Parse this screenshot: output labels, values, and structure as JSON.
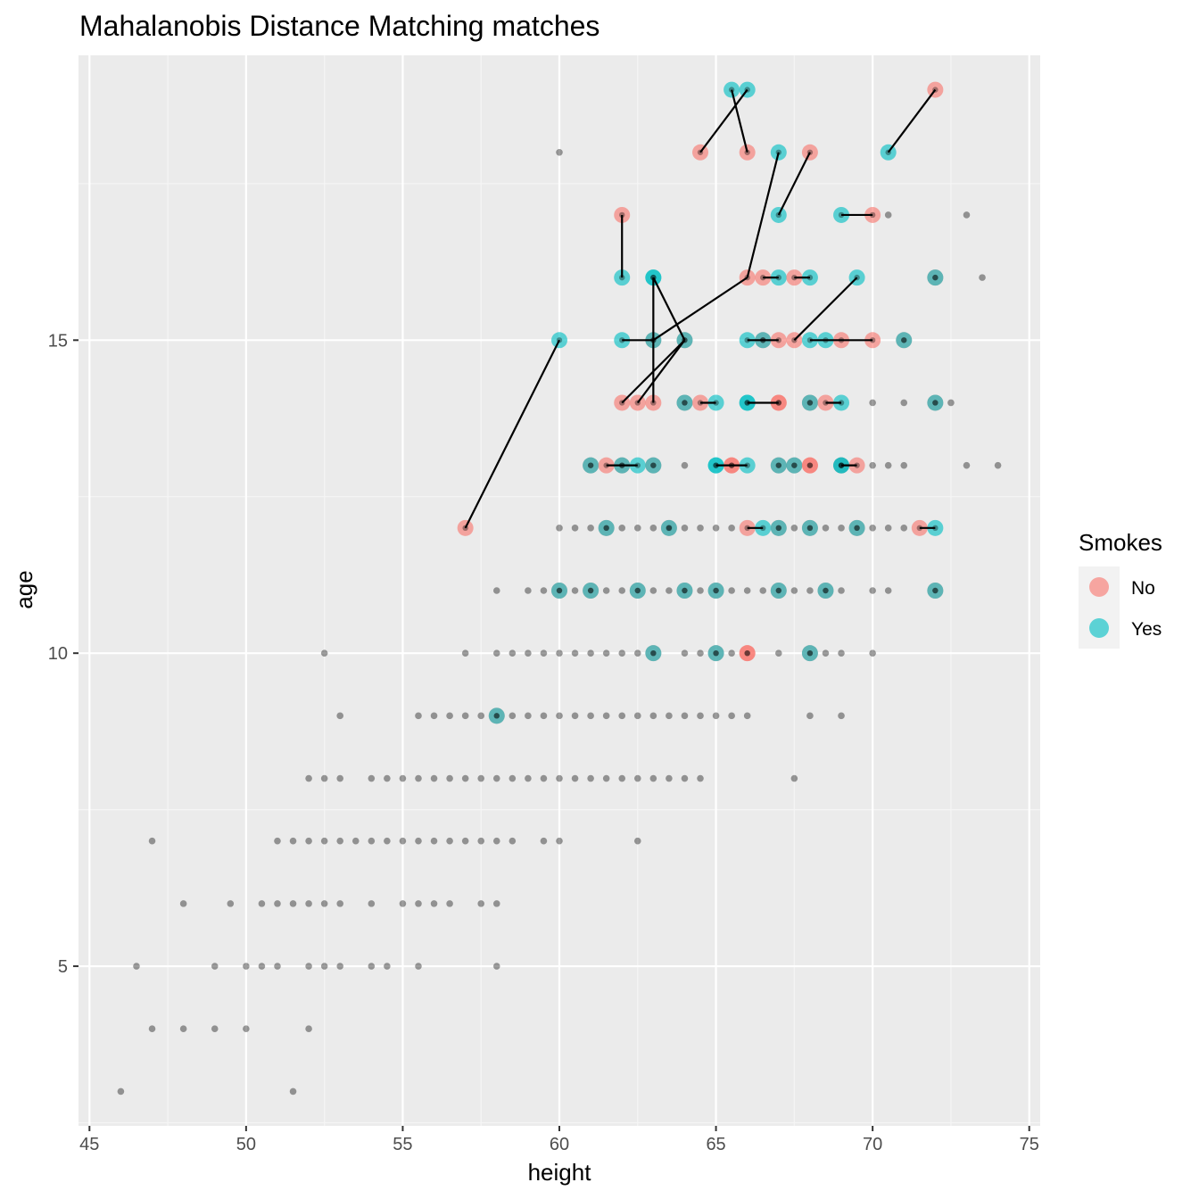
{
  "chart_data": {
    "type": "scatter",
    "title": "Mahalanobis Distance Matching matches",
    "xlabel": "height",
    "ylabel": "age",
    "xlim": [
      44.65,
      75.35
    ],
    "ylim": [
      2.45,
      19.55
    ],
    "x_ticks": [
      45,
      50,
      55,
      60,
      65,
      70,
      75
    ],
    "y_ticks": [
      5,
      10,
      15
    ],
    "grid": true,
    "legend": {
      "title": "Smokes",
      "position": "right",
      "entries": [
        {
          "label": "No",
          "color": "#F8766D"
        },
        {
          "label": "Yes",
          "color": "#00BFC4"
        }
      ]
    },
    "colors": {
      "panel": "#EBEBEB",
      "grid_major": "#FFFFFF",
      "grid_minor": "#F5F5F5",
      "unmatched": "#000000",
      "No": "#F8766D",
      "Yes": "#00BFC4",
      "match_line": "#000000"
    },
    "unmatched_points": [
      [
        46,
        3
      ],
      [
        51.5,
        3
      ],
      [
        47,
        4
      ],
      [
        48,
        4
      ],
      [
        49,
        4
      ],
      [
        50,
        4
      ],
      [
        52,
        4
      ],
      [
        46.5,
        5
      ],
      [
        49,
        5
      ],
      [
        50,
        5
      ],
      [
        50.5,
        5
      ],
      [
        51,
        5
      ],
      [
        52,
        5
      ],
      [
        52.5,
        5
      ],
      [
        53,
        5
      ],
      [
        54,
        5
      ],
      [
        54.5,
        5
      ],
      [
        55.5,
        5
      ],
      [
        58,
        5
      ],
      [
        48,
        6
      ],
      [
        49.5,
        6
      ],
      [
        50.5,
        6
      ],
      [
        51,
        6
      ],
      [
        51.5,
        6
      ],
      [
        52,
        6
      ],
      [
        52.5,
        6
      ],
      [
        53,
        6
      ],
      [
        54,
        6
      ],
      [
        55,
        6
      ],
      [
        55.5,
        6
      ],
      [
        56,
        6
      ],
      [
        56.5,
        6
      ],
      [
        57.5,
        6
      ],
      [
        58,
        6
      ],
      [
        47,
        7
      ],
      [
        51,
        7
      ],
      [
        51.5,
        7
      ],
      [
        52,
        7
      ],
      [
        52.5,
        7
      ],
      [
        53,
        7
      ],
      [
        53.5,
        7
      ],
      [
        54,
        7
      ],
      [
        54.5,
        7
      ],
      [
        55,
        7
      ],
      [
        55.5,
        7
      ],
      [
        56,
        7
      ],
      [
        56.5,
        7
      ],
      [
        57,
        7
      ],
      [
        57.5,
        7
      ],
      [
        58,
        7
      ],
      [
        58.5,
        7
      ],
      [
        59.5,
        7
      ],
      [
        60,
        7
      ],
      [
        62.5,
        7
      ],
      [
        52,
        8
      ],
      [
        52.5,
        8
      ],
      [
        53,
        8
      ],
      [
        54,
        8
      ],
      [
        54.5,
        8
      ],
      [
        55,
        8
      ],
      [
        55.5,
        8
      ],
      [
        56,
        8
      ],
      [
        56.5,
        8
      ],
      [
        57,
        8
      ],
      [
        57.5,
        8
      ],
      [
        58,
        8
      ],
      [
        58.5,
        8
      ],
      [
        59,
        8
      ],
      [
        59.5,
        8
      ],
      [
        60,
        8
      ],
      [
        60.5,
        8
      ],
      [
        61,
        8
      ],
      [
        61.5,
        8
      ],
      [
        62,
        8
      ],
      [
        62.5,
        8
      ],
      [
        63,
        8
      ],
      [
        63.5,
        8
      ],
      [
        64,
        8
      ],
      [
        64.5,
        8
      ],
      [
        67.5,
        8
      ],
      [
        53,
        9
      ],
      [
        55.5,
        9
      ],
      [
        56,
        9
      ],
      [
        56.5,
        9
      ],
      [
        57,
        9
      ],
      [
        57.5,
        9
      ],
      [
        58.5,
        9
      ],
      [
        59,
        9
      ],
      [
        59.5,
        9
      ],
      [
        60,
        9
      ],
      [
        60.5,
        9
      ],
      [
        61,
        9
      ],
      [
        61.5,
        9
      ],
      [
        62,
        9
      ],
      [
        62.5,
        9
      ],
      [
        63,
        9
      ],
      [
        63.5,
        9
      ],
      [
        64,
        9
      ],
      [
        64.5,
        9
      ],
      [
        65,
        9
      ],
      [
        65.5,
        9
      ],
      [
        66,
        9
      ],
      [
        68,
        9
      ],
      [
        69,
        9
      ],
      [
        52.5,
        10
      ],
      [
        57,
        10
      ],
      [
        58,
        10
      ],
      [
        58.5,
        10
      ],
      [
        59,
        10
      ],
      [
        59.5,
        10
      ],
      [
        60,
        10
      ],
      [
        60.5,
        10
      ],
      [
        61,
        10
      ],
      [
        61.5,
        10
      ],
      [
        62,
        10
      ],
      [
        62.5,
        10
      ],
      [
        64,
        10
      ],
      [
        64.5,
        10
      ],
      [
        65.5,
        10
      ],
      [
        67,
        10
      ],
      [
        68.5,
        10
      ],
      [
        69,
        10
      ],
      [
        70,
        10
      ],
      [
        58,
        11
      ],
      [
        59,
        11
      ],
      [
        59.5,
        11
      ],
      [
        60.5,
        11
      ],
      [
        61.5,
        11
      ],
      [
        62,
        11
      ],
      [
        63,
        11
      ],
      [
        63.5,
        11
      ],
      [
        64.5,
        11
      ],
      [
        65.5,
        11
      ],
      [
        66,
        11
      ],
      [
        66.5,
        11
      ],
      [
        67.5,
        11
      ],
      [
        68,
        11
      ],
      [
        69,
        11
      ],
      [
        70,
        11
      ],
      [
        70.5,
        11
      ],
      [
        60,
        12
      ],
      [
        60.5,
        12
      ],
      [
        61,
        12
      ],
      [
        62,
        12
      ],
      [
        62.5,
        12
      ],
      [
        63,
        12
      ],
      [
        63.5,
        12
      ],
      [
        64,
        12
      ],
      [
        64.5,
        12
      ],
      [
        65,
        12
      ],
      [
        65.5,
        12
      ],
      [
        67.5,
        12
      ],
      [
        68.5,
        12
      ],
      [
        69,
        12
      ],
      [
        70,
        12
      ],
      [
        70.5,
        12
      ],
      [
        71,
        12
      ],
      [
        64,
        13
      ],
      [
        70,
        13
      ],
      [
        70.5,
        13
      ],
      [
        71,
        13
      ],
      [
        73,
        13
      ],
      [
        74,
        13
      ],
      [
        70,
        14
      ],
      [
        71,
        14
      ],
      [
        72.5,
        14
      ],
      [
        73.5,
        16
      ],
      [
        70.5,
        17
      ],
      [
        73,
        17
      ],
      [
        60,
        18
      ]
    ],
    "matched_points": [
      {
        "x": 57,
        "y": 12,
        "group": "No"
      },
      {
        "x": 60,
        "y": 15,
        "group": "Yes"
      },
      {
        "x": 64.5,
        "y": 18,
        "group": "No"
      },
      {
        "x": 66,
        "y": 18,
        "group": "No"
      },
      {
        "x": 65.5,
        "y": 19,
        "group": "Yes"
      },
      {
        "x": 66,
        "y": 19,
        "group": "Yes"
      },
      {
        "x": 67,
        "y": 18,
        "group": "Yes"
      },
      {
        "x": 68,
        "y": 18,
        "group": "No"
      },
      {
        "x": 70.5,
        "y": 18,
        "group": "Yes"
      },
      {
        "x": 72,
        "y": 19,
        "group": "No"
      },
      {
        "x": 62,
        "y": 17,
        "group": "No"
      },
      {
        "x": 67,
        "y": 17,
        "group": "Yes"
      },
      {
        "x": 69,
        "y": 17,
        "group": "Yes"
      },
      {
        "x": 70,
        "y": 17,
        "group": "No"
      },
      {
        "x": 62,
        "y": 16,
        "group": "Yes"
      },
      {
        "x": 63,
        "y": 16,
        "group": "Yes"
      },
      {
        "x": 63,
        "y": 16,
        "group": "Yes"
      },
      {
        "x": 66,
        "y": 16,
        "group": "No"
      },
      {
        "x": 66.5,
        "y": 16,
        "group": "No"
      },
      {
        "x": 67,
        "y": 16,
        "group": "Yes"
      },
      {
        "x": 67.5,
        "y": 16,
        "group": "No"
      },
      {
        "x": 68,
        "y": 16,
        "group": "Yes"
      },
      {
        "x": 69.5,
        "y": 16,
        "group": "Yes"
      },
      {
        "x": 72,
        "y": 16,
        "group": "No"
      },
      {
        "x": 72,
        "y": 16,
        "group": "Yes"
      },
      {
        "x": 62,
        "y": 15,
        "group": "Yes"
      },
      {
        "x": 63,
        "y": 15,
        "group": "No"
      },
      {
        "x": 63,
        "y": 15,
        "group": "Yes"
      },
      {
        "x": 64,
        "y": 15,
        "group": "No"
      },
      {
        "x": 64,
        "y": 15,
        "group": "Yes"
      },
      {
        "x": 66,
        "y": 15,
        "group": "Yes"
      },
      {
        "x": 66.5,
        "y": 15,
        "group": "No"
      },
      {
        "x": 66.5,
        "y": 15,
        "group": "Yes"
      },
      {
        "x": 67,
        "y": 15,
        "group": "No"
      },
      {
        "x": 67.5,
        "y": 15,
        "group": "No"
      },
      {
        "x": 68,
        "y": 15,
        "group": "Yes"
      },
      {
        "x": 68.5,
        "y": 15,
        "group": "Yes"
      },
      {
        "x": 69,
        "y": 15,
        "group": "No"
      },
      {
        "x": 70,
        "y": 15,
        "group": "No"
      },
      {
        "x": 71,
        "y": 15,
        "group": "No"
      },
      {
        "x": 71,
        "y": 15,
        "group": "Yes"
      },
      {
        "x": 62,
        "y": 14,
        "group": "No"
      },
      {
        "x": 62.5,
        "y": 14,
        "group": "No"
      },
      {
        "x": 63,
        "y": 14,
        "group": "No"
      },
      {
        "x": 64,
        "y": 14,
        "group": "No"
      },
      {
        "x": 64,
        "y": 14,
        "group": "Yes"
      },
      {
        "x": 64.5,
        "y": 14,
        "group": "No"
      },
      {
        "x": 65,
        "y": 14,
        "group": "Yes"
      },
      {
        "x": 66,
        "y": 14,
        "group": "Yes"
      },
      {
        "x": 66,
        "y": 14,
        "group": "Yes"
      },
      {
        "x": 67,
        "y": 14,
        "group": "No"
      },
      {
        "x": 67,
        "y": 14,
        "group": "No"
      },
      {
        "x": 68,
        "y": 14,
        "group": "No"
      },
      {
        "x": 68,
        "y": 14,
        "group": "Yes"
      },
      {
        "x": 68.5,
        "y": 14,
        "group": "No"
      },
      {
        "x": 69,
        "y": 14,
        "group": "Yes"
      },
      {
        "x": 72,
        "y": 14,
        "group": "No"
      },
      {
        "x": 72,
        "y": 14,
        "group": "Yes"
      },
      {
        "x": 61,
        "y": 13,
        "group": "No"
      },
      {
        "x": 61,
        "y": 13,
        "group": "Yes"
      },
      {
        "x": 61.5,
        "y": 13,
        "group": "No"
      },
      {
        "x": 62,
        "y": 13,
        "group": "No"
      },
      {
        "x": 62,
        "y": 13,
        "group": "Yes"
      },
      {
        "x": 62.5,
        "y": 13,
        "group": "Yes"
      },
      {
        "x": 63,
        "y": 13,
        "group": "No"
      },
      {
        "x": 63,
        "y": 13,
        "group": "Yes"
      },
      {
        "x": 65,
        "y": 13,
        "group": "Yes"
      },
      {
        "x": 65,
        "y": 13,
        "group": "Yes"
      },
      {
        "x": 65.5,
        "y": 13,
        "group": "No"
      },
      {
        "x": 65.5,
        "y": 13,
        "group": "No"
      },
      {
        "x": 66,
        "y": 13,
        "group": "Yes"
      },
      {
        "x": 67,
        "y": 13,
        "group": "No"
      },
      {
        "x": 67,
        "y": 13,
        "group": "Yes"
      },
      {
        "x": 67.5,
        "y": 13,
        "group": "No"
      },
      {
        "x": 67.5,
        "y": 13,
        "group": "Yes"
      },
      {
        "x": 68,
        "y": 13,
        "group": "No"
      },
      {
        "x": 68,
        "y": 13,
        "group": "No"
      },
      {
        "x": 69,
        "y": 13,
        "group": "No"
      },
      {
        "x": 69,
        "y": 13,
        "group": "Yes"
      },
      {
        "x": 69,
        "y": 13,
        "group": "Yes"
      },
      {
        "x": 69.5,
        "y": 13,
        "group": "No"
      },
      {
        "x": 61.5,
        "y": 12,
        "group": "No"
      },
      {
        "x": 61.5,
        "y": 12,
        "group": "Yes"
      },
      {
        "x": 63.5,
        "y": 12,
        "group": "No"
      },
      {
        "x": 63.5,
        "y": 12,
        "group": "Yes"
      },
      {
        "x": 66,
        "y": 12,
        "group": "No"
      },
      {
        "x": 66.5,
        "y": 12,
        "group": "Yes"
      },
      {
        "x": 67,
        "y": 12,
        "group": "No"
      },
      {
        "x": 67,
        "y": 12,
        "group": "Yes"
      },
      {
        "x": 68,
        "y": 12,
        "group": "No"
      },
      {
        "x": 68,
        "y": 12,
        "group": "Yes"
      },
      {
        "x": 69.5,
        "y": 12,
        "group": "No"
      },
      {
        "x": 69.5,
        "y": 12,
        "group": "Yes"
      },
      {
        "x": 71.5,
        "y": 12,
        "group": "No"
      },
      {
        "x": 72,
        "y": 12,
        "group": "Yes"
      },
      {
        "x": 60,
        "y": 11,
        "group": "No"
      },
      {
        "x": 60,
        "y": 11,
        "group": "Yes"
      },
      {
        "x": 61,
        "y": 11,
        "group": "No"
      },
      {
        "x": 61,
        "y": 11,
        "group": "Yes"
      },
      {
        "x": 62.5,
        "y": 11,
        "group": "No"
      },
      {
        "x": 62.5,
        "y": 11,
        "group": "Yes"
      },
      {
        "x": 64,
        "y": 11,
        "group": "No"
      },
      {
        "x": 64,
        "y": 11,
        "group": "Yes"
      },
      {
        "x": 65,
        "y": 11,
        "group": "No"
      },
      {
        "x": 65,
        "y": 11,
        "group": "Yes"
      },
      {
        "x": 67,
        "y": 11,
        "group": "No"
      },
      {
        "x": 67,
        "y": 11,
        "group": "Yes"
      },
      {
        "x": 68.5,
        "y": 11,
        "group": "No"
      },
      {
        "x": 68.5,
        "y": 11,
        "group": "Yes"
      },
      {
        "x": 72,
        "y": 11,
        "group": "No"
      },
      {
        "x": 72,
        "y": 11,
        "group": "Yes"
      },
      {
        "x": 63,
        "y": 10,
        "group": "No"
      },
      {
        "x": 63,
        "y": 10,
        "group": "Yes"
      },
      {
        "x": 65,
        "y": 10,
        "group": "No"
      },
      {
        "x": 65,
        "y": 10,
        "group": "Yes"
      },
      {
        "x": 66,
        "y": 10,
        "group": "No"
      },
      {
        "x": 66,
        "y": 10,
        "group": "No"
      },
      {
        "x": 68,
        "y": 10,
        "group": "No"
      },
      {
        "x": 68,
        "y": 10,
        "group": "Yes"
      },
      {
        "x": 58,
        "y": 9,
        "group": "No"
      },
      {
        "x": 58,
        "y": 9,
        "group": "Yes"
      }
    ],
    "match_lines": [
      [
        [
          57,
          12
        ],
        [
          60,
          15
        ]
      ],
      [
        [
          64.5,
          18
        ],
        [
          66,
          19
        ]
      ],
      [
        [
          66,
          18
        ],
        [
          65.5,
          19
        ]
      ],
      [
        [
          66,
          16
        ],
        [
          67,
          18
        ]
      ],
      [
        [
          67,
          17
        ],
        [
          68,
          18
        ]
      ],
      [
        [
          70.5,
          18
        ],
        [
          72,
          19
        ]
      ],
      [
        [
          69,
          17
        ],
        [
          70,
          17
        ]
      ],
      [
        [
          62,
          16
        ],
        [
          62,
          17
        ]
      ],
      [
        [
          63,
          14
        ],
        [
          63,
          16
        ]
      ],
      [
        [
          63,
          16
        ],
        [
          64,
          15
        ]
      ],
      [
        [
          62.5,
          14
        ],
        [
          64,
          15
        ]
      ],
      [
        [
          63,
          15
        ],
        [
          66,
          16
        ]
      ],
      [
        [
          62,
          15
        ],
        [
          63,
          15
        ]
      ],
      [
        [
          62,
          14
        ],
        [
          64,
          15
        ]
      ],
      [
        [
          66.5,
          16
        ],
        [
          67,
          16
        ]
      ],
      [
        [
          67.5,
          16
        ],
        [
          68,
          16
        ]
      ],
      [
        [
          67.5,
          15
        ],
        [
          69.5,
          16
        ]
      ],
      [
        [
          66,
          15
        ],
        [
          67,
          15
        ]
      ],
      [
        [
          68,
          15
        ],
        [
          70,
          15
        ]
      ],
      [
        [
          64.5,
          14
        ],
        [
          65,
          14
        ]
      ],
      [
        [
          66,
          14
        ],
        [
          67,
          14
        ]
      ],
      [
        [
          68.5,
          14
        ],
        [
          69,
          14
        ]
      ],
      [
        [
          61.5,
          13
        ],
        [
          62.5,
          13
        ]
      ],
      [
        [
          65,
          13
        ],
        [
          66,
          13
        ]
      ],
      [
        [
          69,
          13
        ],
        [
          69.5,
          13
        ]
      ],
      [
        [
          66,
          12
        ],
        [
          66.5,
          12
        ]
      ],
      [
        [
          71.5,
          12
        ],
        [
          72,
          12
        ]
      ]
    ]
  }
}
